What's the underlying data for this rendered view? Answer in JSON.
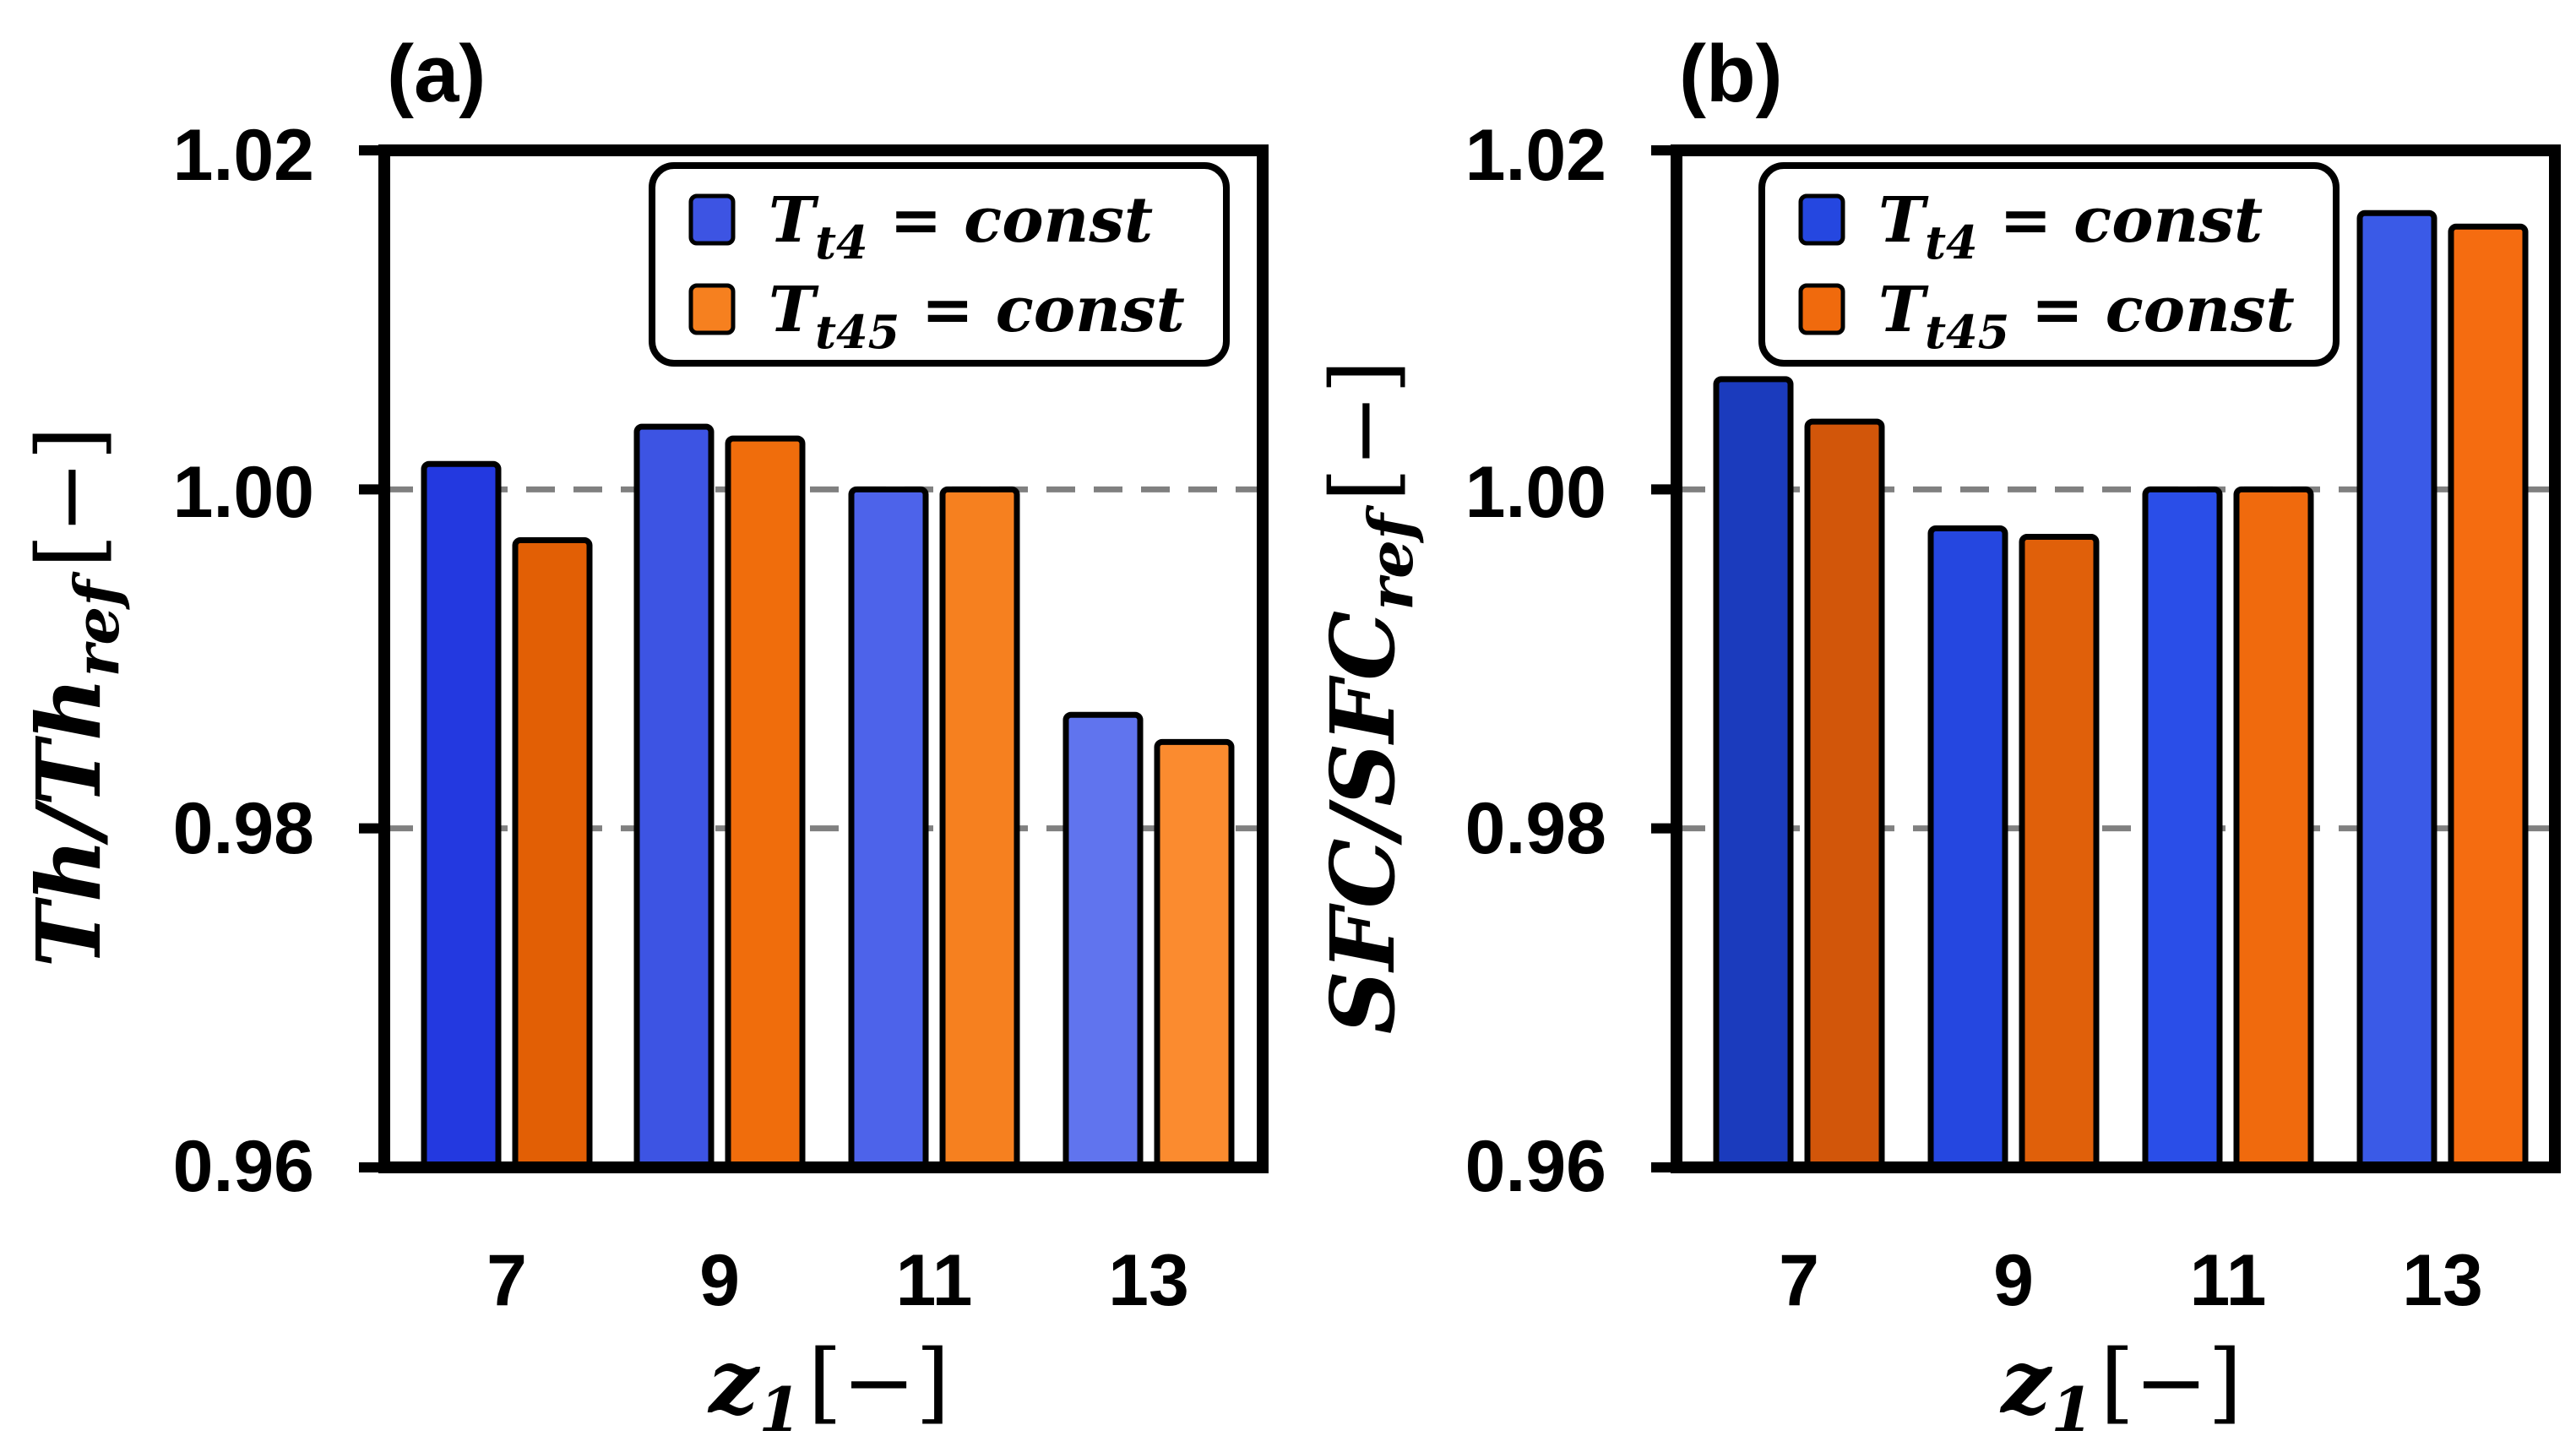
{
  "colors": {
    "series_blue": [
      "#2339e0",
      "#3d54e3",
      "#4d63ea",
      "#6074ee"
    ],
    "series_orange": [
      "#e25f05",
      "#f06d0c",
      "#f6801f",
      "#fb8b2f"
    ],
    "panel_b_blue": [
      "#1b3bbd",
      "#2547e0",
      "#2a4ee8",
      "#3a5ae7"
    ],
    "panel_b_orange": [
      "#d2560a",
      "#e0600a",
      "#f06a0d",
      "#f56c10"
    ],
    "frame": "#000000",
    "refline": "#808080"
  },
  "chart_data": [
    {
      "type": "bar",
      "panel_label": "(a)",
      "categories": [
        "7",
        "9",
        "11",
        "13"
      ],
      "series": [
        {
          "name": "T_t4 = const",
          "values": [
            1.0015,
            1.0037,
            1.0,
            0.9867
          ]
        },
        {
          "name": "T_t45 = const",
          "values": [
            0.997,
            1.003,
            1.0,
            0.9851
          ]
        }
      ],
      "ylim": [
        0.96,
        1.02
      ],
      "yticks": [
        "0.96",
        "0.98",
        "1.00",
        "1.02"
      ],
      "reference_lines": [
        1.0,
        0.98
      ],
      "legend_position": "top-right",
      "ylabel": {
        "main": "Th/Th",
        "sub": "ref",
        "unit": "[−]"
      },
      "xlabel": {
        "main": "z",
        "sub": "1",
        "unit": "[−]"
      },
      "legend": [
        {
          "T": "T",
          "sub": "t4",
          "rest": " = const"
        },
        {
          "T": "T",
          "sub": "t45",
          "rest": " = const"
        }
      ]
    },
    {
      "type": "bar",
      "panel_label": "(b)",
      "categories": [
        "7",
        "9",
        "11",
        "13"
      ],
      "series": [
        {
          "name": "T_t4 = const",
          "values": [
            1.0065,
            0.9977,
            1.0,
            1.0163
          ]
        },
        {
          "name": "T_t45 = const",
          "values": [
            1.004,
            0.9972,
            1.0,
            1.0155
          ]
        }
      ],
      "ylim": [
        0.96,
        1.02
      ],
      "yticks": [
        "0.96",
        "0.98",
        "1.00",
        "1.02"
      ],
      "reference_lines": [
        1.0,
        0.98
      ],
      "legend_position": "top-left",
      "ylabel": {
        "main": "SFC/SFC",
        "sub": "ref",
        "unit": "[−]"
      },
      "xlabel": {
        "main": "z",
        "sub": "1",
        "unit": "[−]"
      },
      "legend": [
        {
          "T": "T",
          "sub": "t4",
          "rest": " = const"
        },
        {
          "T": "T",
          "sub": "t45",
          "rest": " = const"
        }
      ]
    }
  ]
}
